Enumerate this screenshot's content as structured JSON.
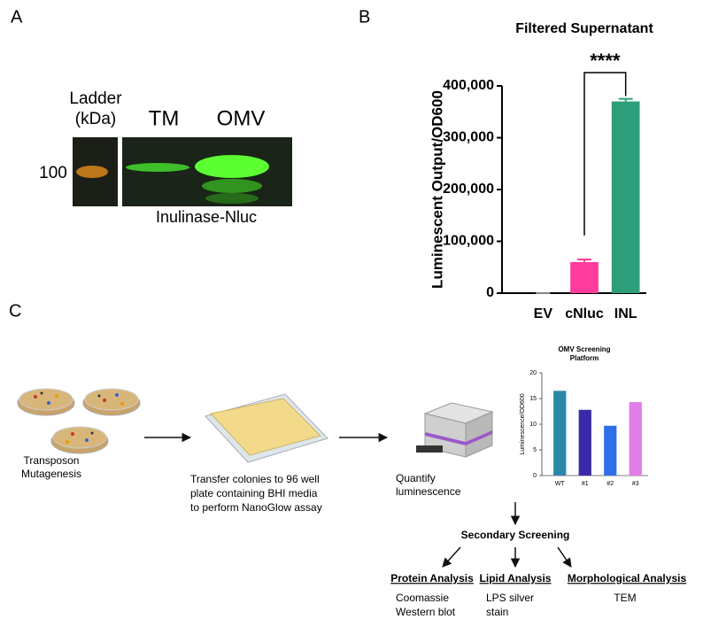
{
  "panels": [
    "A",
    "B",
    "C"
  ],
  "blot": {
    "ladder_title": [
      "Ladder",
      "(kDa)"
    ],
    "lanes": [
      "TM",
      "OMV"
    ],
    "marker": "100",
    "caption": "Inulinase-Nluc"
  },
  "chart_data": [
    {
      "type": "bar",
      "title": "Filtered Supernatant",
      "y_label": "Luminescent Output/OD600",
      "categories": [
        "EV",
        "cNluc",
        "INL"
      ],
      "values": [
        0,
        60000,
        370000
      ],
      "errors": [
        0,
        5000,
        5000
      ],
      "colors": [
        "#888888",
        "#ff3c9b",
        "#2e9e7a"
      ],
      "ylim": [
        0,
        400000
      ],
      "yticks": [
        0,
        {
          "value": 100000,
          "label": "100,000"
        },
        {
          "value": 200000,
          "label": "200,000"
        },
        {
          "value": 300000,
          "label": "300,000"
        },
        {
          "value": 400000,
          "label": "400,000"
        }
      ],
      "annotation": "****"
    },
    {
      "type": "bar",
      "title": "OMV Screening Platform",
      "y_label": "Luminescence/OD600",
      "categories": [
        "WT",
        "#1",
        "#2",
        "#3"
      ],
      "values": [
        16.5,
        12.8,
        9.7,
        14.3
      ],
      "colors": [
        "#2a87a8",
        "#3a2aa8",
        "#2f6fe8",
        "#e27de8"
      ],
      "ylim": [
        0,
        20
      ],
      "yticks": [
        0,
        5,
        10,
        15,
        20
      ]
    }
  ],
  "workflow": {
    "steps": [
      [
        "Transposon",
        "Mutagenesis"
      ],
      [
        "Transfer colonies to 96 well",
        "plate containing BHI media",
        "to perform NanoGlow assay"
      ],
      [
        "Quantify",
        "luminescence"
      ]
    ],
    "secondary": "Secondary Screening",
    "analyses": [
      {
        "title": "Protein Analysis",
        "items": [
          "Coomassie",
          "Western blot"
        ]
      },
      {
        "title": "Lipid Analysis",
        "items": [
          "LPS silver",
          "stain"
        ]
      },
      {
        "title": "Morphological Analysis",
        "items": [
          "TEM"
        ]
      }
    ]
  }
}
